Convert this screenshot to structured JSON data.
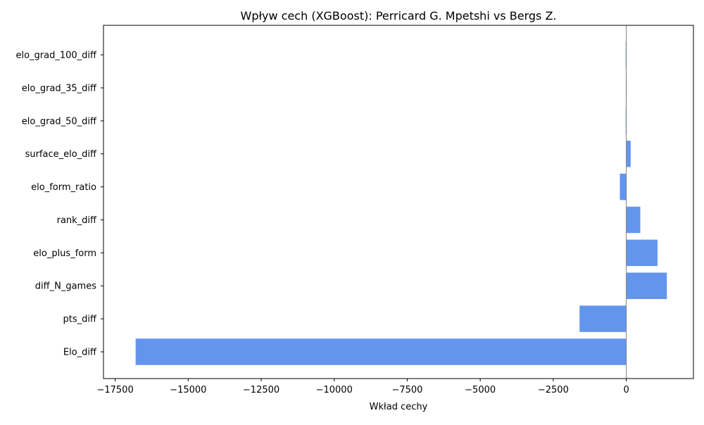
{
  "chart_data": {
    "type": "bar",
    "orientation": "horizontal",
    "title": "Wpływ cech (XGBoost): Perricard G. Mpetshi vs Bergs Z.",
    "xlabel": "Wkład cechy",
    "ylabel": "",
    "xlim": [
      -17900,
      2300
    ],
    "xticks": [
      -17500,
      -15000,
      -12500,
      -10000,
      -7500,
      -5000,
      -2500,
      0
    ],
    "xtick_labels": [
      "−17500",
      "−15000",
      "−12500",
      "−10000",
      "−7500",
      "−5000",
      "−2500",
      "0"
    ],
    "categories": [
      "elo_grad_100_diff",
      "elo_grad_35_diff",
      "elo_grad_50_diff",
      "surface_elo_diff",
      "elo_form_ratio",
      "rank_diff",
      "elo_plus_form",
      "diff_N_games",
      "pts_diff",
      "Elo_diff"
    ],
    "values": [
      -20,
      -15,
      -20,
      150,
      -220,
      480,
      1070,
      1390,
      -1600,
      -16800
    ],
    "bar_color": "#6495ed",
    "zero_line": true,
    "grid": false
  }
}
